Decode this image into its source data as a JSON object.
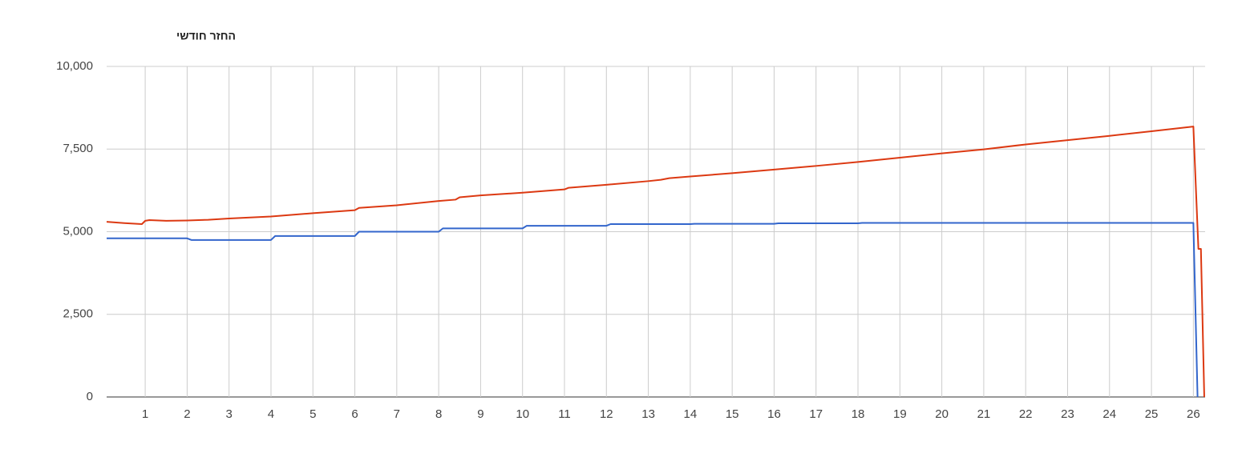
{
  "chart_data": {
    "type": "line",
    "title": "החזר חודשי",
    "xlim": [
      0.08,
      26.28
    ],
    "xticks": [
      1,
      2,
      3,
      4,
      5,
      6,
      7,
      8,
      9,
      10,
      11,
      12,
      13,
      14,
      15,
      16,
      17,
      18,
      19,
      20,
      21,
      22,
      23,
      24,
      25,
      26
    ],
    "ylim": [
      0,
      10000
    ],
    "yticks": [
      0,
      {
        "value": 2500,
        "label": "2,500"
      },
      {
        "value": 5000,
        "label": "5,000"
      },
      {
        "value": 7500,
        "label": "7,500"
      },
      {
        "value": 10000,
        "label": "10,000"
      }
    ],
    "grid": true,
    "series": [
      {
        "color": "#3366cc",
        "x": [
          0.08,
          2.0,
          2.1,
          4.0,
          4.1,
          6.0,
          6.1,
          8.0,
          8.1,
          10.0,
          10.1,
          12.0,
          12.1,
          14.0,
          14.1,
          16.0,
          16.1,
          18.0,
          18.1,
          26.0,
          26.1
        ],
        "values": [
          4800,
          4800,
          4750,
          4750,
          4870,
          4870,
          5000,
          5000,
          5100,
          5100,
          5180,
          5180,
          5230,
          5230,
          5240,
          5240,
          5255,
          5255,
          5265,
          5265,
          0
        ]
      },
      {
        "color": "#dc3912",
        "x": [
          0.08,
          0.5,
          0.92,
          1.0,
          1.1,
          1.5,
          2,
          2.5,
          3,
          4,
          5,
          6,
          6.1,
          7,
          8,
          8.4,
          8.5,
          9,
          10,
          11,
          11.1,
          12,
          13,
          13.3,
          13.5,
          14,
          15,
          16,
          17,
          18,
          19,
          20,
          21,
          22,
          23,
          24,
          25,
          26,
          26.12,
          26.18,
          26.26
        ],
        "values": [
          5300,
          5260,
          5230,
          5330,
          5350,
          5330,
          5340,
          5360,
          5400,
          5460,
          5560,
          5650,
          5720,
          5800,
          5930,
          5970,
          6040,
          6100,
          6180,
          6280,
          6330,
          6420,
          6530,
          6570,
          6620,
          6670,
          6770,
          6880,
          6990,
          7110,
          7240,
          7370,
          7490,
          7640,
          7770,
          7900,
          8040,
          8180,
          4480,
          4480,
          0
        ]
      }
    ]
  }
}
